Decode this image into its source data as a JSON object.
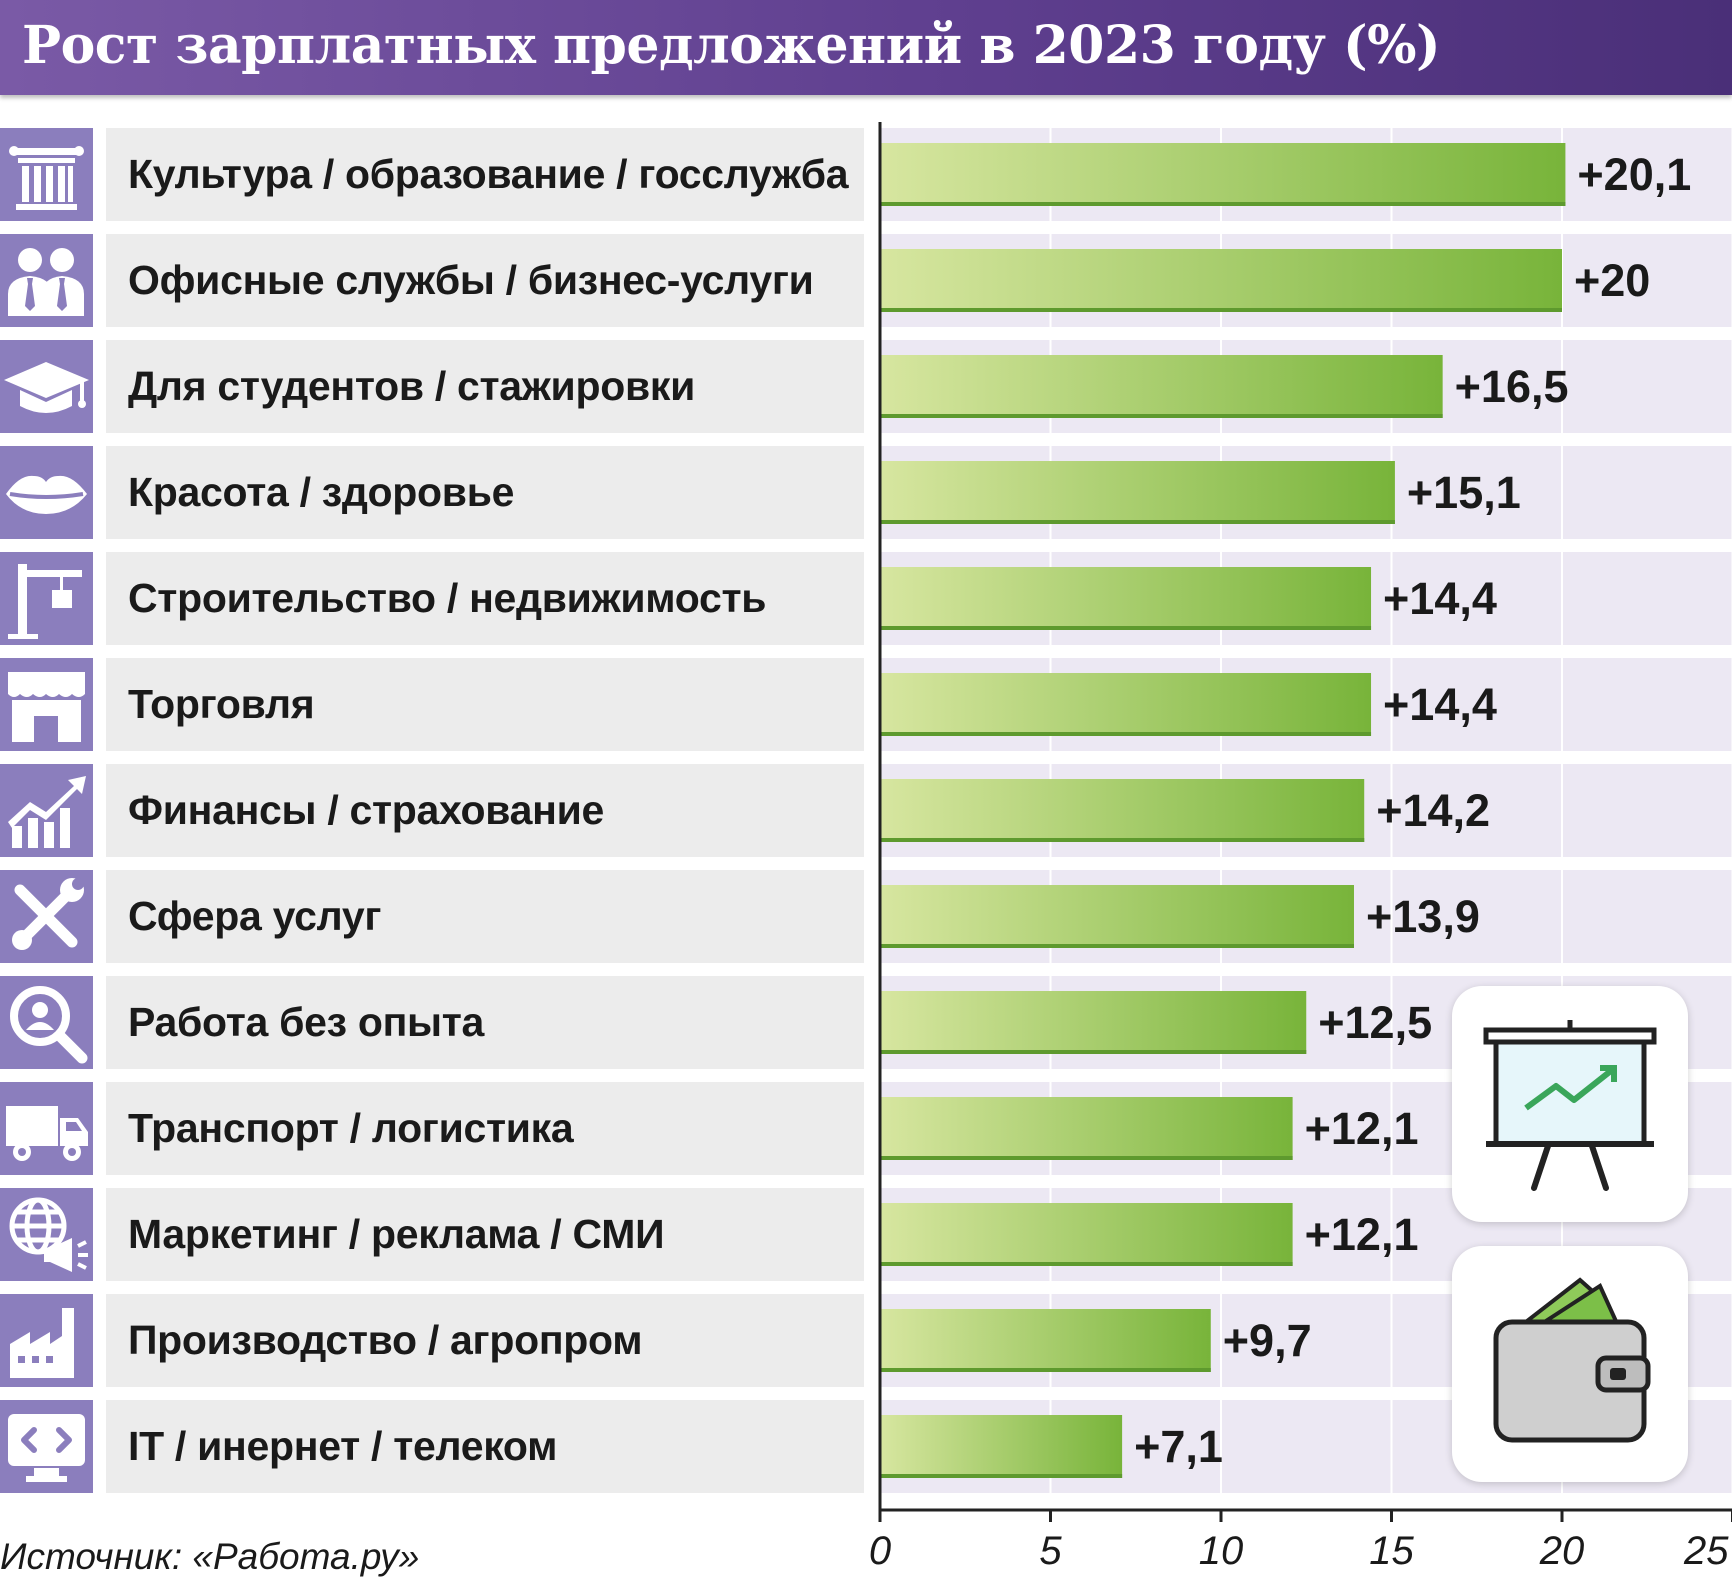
{
  "header": {
    "title": "Рост зарплатных предложений в 2023 году (%)"
  },
  "source": "Источник: «Работа.ру»",
  "colors": {
    "header": "#5f3f8f",
    "icon_bg": "#8b7ebd",
    "bar_start": "#d7e6a0",
    "bar_end": "#78b43a",
    "bar_edge": "#5e9a2e",
    "plot_bg": "#ece8f3",
    "label_bg": "#ececec"
  },
  "rows": [
    {
      "label": "Культура / образование / госслужба",
      "icon": "columns-icon"
    },
    {
      "label": "Офисные службы / бизнес-услуги",
      "icon": "office-people-icon"
    },
    {
      "label": "Для студентов / стажировки",
      "icon": "graduation-cap-icon"
    },
    {
      "label": "Красота / здоровье",
      "icon": "lips-icon"
    },
    {
      "label": "Строительство / недвижимость",
      "icon": "crane-icon"
    },
    {
      "label": "Торговля",
      "icon": "shop-icon"
    },
    {
      "label": "Финансы / страхование",
      "icon": "growth-chart-icon"
    },
    {
      "label": "Сфера услуг",
      "icon": "tools-icon"
    },
    {
      "label": "Работа без опыта",
      "icon": "magnifier-icon"
    },
    {
      "label": "Транспорт / логистика",
      "icon": "truck-icon"
    },
    {
      "label": "Маркетинг / реклама / СМИ",
      "icon": "globe-megaphone-icon"
    },
    {
      "label": "Производство / агропром",
      "icon": "factory-icon"
    },
    {
      "label": "IT / инернет / телеком",
      "icon": "code-monitor-icon"
    }
  ],
  "decorations": [
    "presentation-board-icon",
    "wallet-icon"
  ],
  "chart_data": {
    "type": "bar",
    "orientation": "horizontal",
    "categories": [
      "Культура / образование / госслужба",
      "Офисные службы / бизнес-услуги",
      "Для студентов / стажировки",
      "Красота / здоровье",
      "Строительство / недвижимость",
      "Торговля",
      "Финансы / страхование",
      "Сфера услуг",
      "Работа без опыта",
      "Транспорт / логистика",
      "Маркетинг / реклама / СМИ",
      "Производство / агропром",
      "IT / инернет / телеком"
    ],
    "values": [
      20.1,
      20,
      16.5,
      15.1,
      14.4,
      14.4,
      14.2,
      13.9,
      12.5,
      12.1,
      12.1,
      9.7,
      7.1
    ],
    "value_labels": [
      "+20,1",
      "+20",
      "+16,5",
      "+15,1",
      "+14,4",
      "+14,4",
      "+14,2",
      "+13,9",
      "+12,5",
      "+12,1",
      "+12,1",
      "+9,7",
      "+7,1"
    ],
    "title": "Рост зарплатных предложений в 2023 году (%)",
    "xlim": [
      0,
      25
    ],
    "xticks": [
      0,
      5,
      10,
      15,
      20,
      25
    ],
    "xtick_labels": [
      "0",
      "5",
      "10",
      "15",
      "20",
      "25"
    ],
    "grid": true,
    "legend": "none"
  }
}
